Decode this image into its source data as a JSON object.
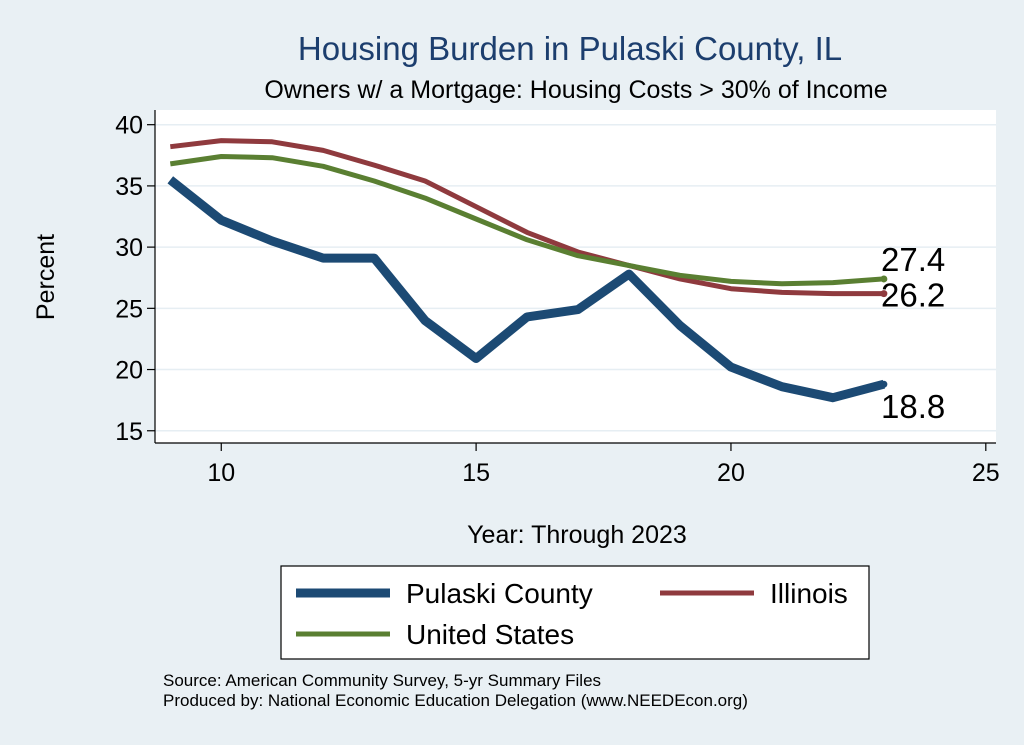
{
  "chart_data": {
    "type": "line",
    "title": "Housing Burden in Pulaski County, IL",
    "subtitle": "Owners w/ a Mortgage: Housing Costs > 30% of Income",
    "xlabel": "Year: Through 2023",
    "ylabel": "Percent",
    "xlim": [
      8.7,
      25.2
    ],
    "ylim": [
      14,
      41.2
    ],
    "xticks": [
      10,
      15,
      20,
      25
    ],
    "yticks": [
      15,
      20,
      25,
      30,
      35,
      40
    ],
    "grid": true,
    "legend_position": "bottom",
    "x": [
      9,
      10,
      11,
      12,
      13,
      14,
      15,
      16,
      17,
      18,
      19,
      20,
      21,
      22,
      23
    ],
    "series": [
      {
        "name": "Pulaski County",
        "color": "#1c4a74",
        "values": [
          35.5,
          32.2,
          30.5,
          29.1,
          29.1,
          24.0,
          20.9,
          24.3,
          24.9,
          27.8,
          23.6,
          20.2,
          18.6,
          17.7,
          18.8
        ],
        "end_label": "18.8"
      },
      {
        "name": "Illinois",
        "color": "#8f3a3e",
        "values": [
          38.2,
          38.7,
          38.6,
          37.9,
          36.7,
          35.4,
          33.3,
          31.2,
          29.6,
          28.5,
          27.4,
          26.6,
          26.3,
          26.2,
          26.2
        ],
        "end_label": "26.2"
      },
      {
        "name": "United States",
        "color": "#5a7f32",
        "values": [
          36.8,
          37.4,
          37.3,
          36.6,
          35.4,
          34.0,
          32.3,
          30.6,
          29.3,
          28.5,
          27.7,
          27.2,
          27.0,
          27.1,
          27.4
        ],
        "end_label": "27.4"
      }
    ]
  },
  "footer": {
    "source": "Source: American Community Survey, 5-yr Summary Files",
    "produced_by": "Produced by: National Economic Education Delegation (www.NEEDEcon.org)"
  }
}
